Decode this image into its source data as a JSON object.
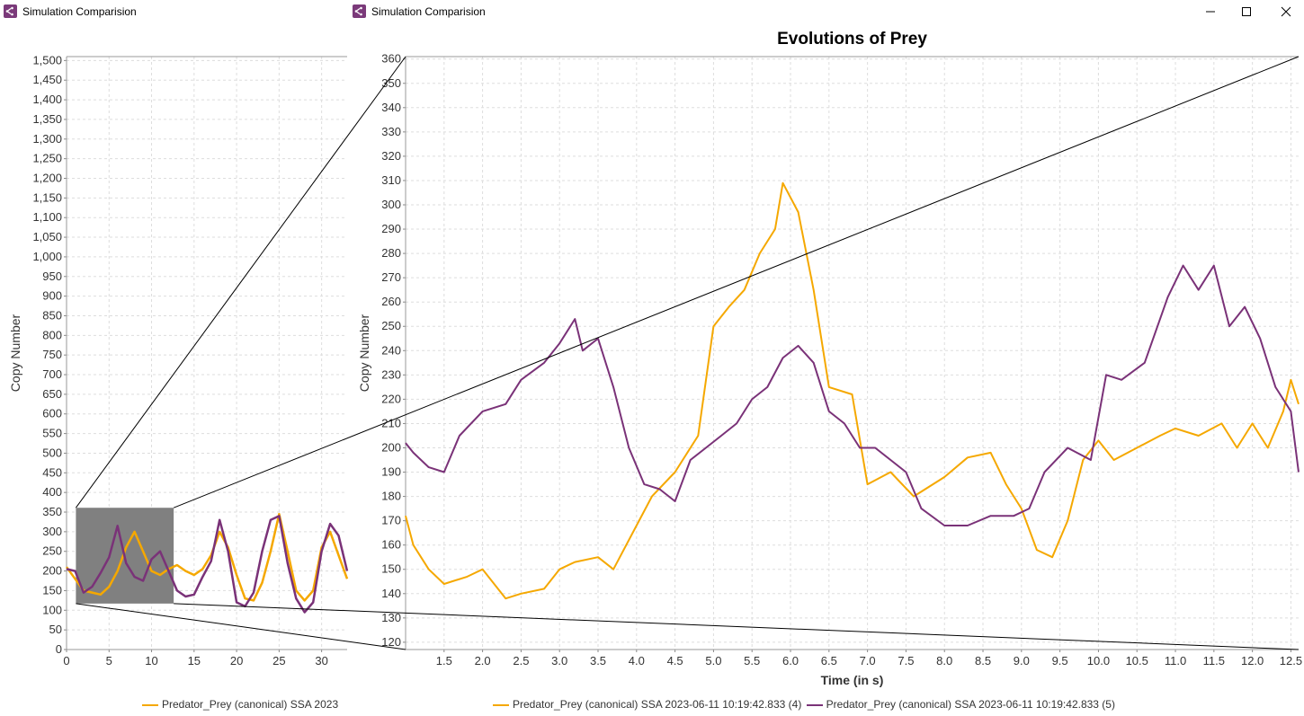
{
  "windows": {
    "left": {
      "title": "Simulation Comparision",
      "legend": [
        {
          "label": "Predator_Prey (canonical) SSA 2023",
          "color": "#f5a800"
        }
      ]
    },
    "right": {
      "title": "Simulation Comparision"
    }
  },
  "icons": {
    "app": "app-icon",
    "minimize": "minimize-icon",
    "maximize": "maximize-icon",
    "close": "close-icon"
  },
  "colors": {
    "series_a": "#f5a800",
    "series_b": "#7a3278",
    "selection": "#808080",
    "zoom_overlay": "#22cc22"
  },
  "chart_data": [
    {
      "type": "line",
      "title": "",
      "xlabel": "",
      "ylabel": "Copy Number",
      "xlim": [
        0,
        33
      ],
      "ylim": [
        0,
        1510
      ],
      "xticks": [
        "0",
        "5",
        "10",
        "15",
        "20",
        "25",
        "30"
      ],
      "yticks": [
        "0",
        "50",
        "100",
        "150",
        "200",
        "250",
        "300",
        "350",
        "400",
        "450",
        "500",
        "550",
        "600",
        "650",
        "700",
        "750",
        "800",
        "850",
        "900",
        "950",
        "1,000",
        "1,050",
        "1,100",
        "1,150",
        "1,200",
        "1,250",
        "1,300",
        "1,350",
        "1,400",
        "1,450",
        "1,500"
      ],
      "grid": true,
      "selection": {
        "x": [
          1.1,
          12.6
        ],
        "y": [
          117,
          361
        ]
      },
      "series": [
        {
          "name": "Predator_Prey (canonical) SSA 2023",
          "x": [
            0,
            1,
            2,
            3,
            4,
            5,
            6,
            7,
            8,
            9,
            10,
            11,
            12,
            13,
            14,
            15,
            16,
            17,
            18,
            19,
            20,
            21,
            22,
            23,
            24,
            25,
            26,
            27,
            28,
            29,
            30,
            31,
            32,
            33
          ],
          "values": [
            210,
            180,
            150,
            145,
            140,
            160,
            200,
            260,
            300,
            250,
            200,
            190,
            205,
            215,
            200,
            190,
            205,
            240,
            300,
            260,
            190,
            130,
            125,
            170,
            250,
            345,
            250,
            150,
            125,
            150,
            260,
            300,
            240,
            180
          ]
        },
        {
          "x": [
            0,
            1,
            2,
            3,
            4,
            5,
            6,
            7,
            8,
            9,
            10,
            11,
            12,
            13,
            14,
            15,
            16,
            17,
            18,
            19,
            20,
            21,
            22,
            23,
            24,
            25,
            26,
            27,
            28,
            29,
            30,
            31,
            32,
            33
          ],
          "values": [
            205,
            200,
            145,
            160,
            195,
            235,
            315,
            220,
            185,
            175,
            230,
            250,
            200,
            150,
            135,
            140,
            185,
            225,
            330,
            250,
            120,
            110,
            145,
            250,
            330,
            340,
            220,
            130,
            95,
            120,
            250,
            320,
            290,
            200
          ]
        }
      ]
    },
    {
      "type": "line",
      "title": "Evolutions of Prey",
      "xlabel": "Time (in s)",
      "ylabel": "Copy Number",
      "xlim": [
        1.0,
        12.6
      ],
      "ylim": [
        117,
        361
      ],
      "xticks": [
        "1.5",
        "2.0",
        "2.5",
        "3.0",
        "3.5",
        "4.0",
        "4.5",
        "5.0",
        "5.5",
        "6.0",
        "6.5",
        "7.0",
        "7.5",
        "8.0",
        "8.5",
        "9.0",
        "9.5",
        "10.0",
        "10.5",
        "11.0",
        "11.5",
        "12.0",
        "12.5"
      ],
      "yticks": [
        "120",
        "130",
        "140",
        "150",
        "160",
        "170",
        "180",
        "190",
        "200",
        "210",
        "220",
        "230",
        "240",
        "250",
        "260",
        "270",
        "280",
        "290",
        "300",
        "310",
        "320",
        "330",
        "340",
        "350",
        "360"
      ],
      "grid": true,
      "series": [
        {
          "name": "Predator_Prey (canonical) SSA 2023-06-11 10:19:42.833 (4)",
          "x": [
            1.0,
            1.1,
            1.3,
            1.5,
            1.8,
            2.0,
            2.3,
            2.5,
            2.8,
            3.0,
            3.2,
            3.5,
            3.7,
            4.0,
            4.2,
            4.5,
            4.8,
            5.0,
            5.2,
            5.4,
            5.6,
            5.8,
            5.9,
            6.1,
            6.3,
            6.5,
            6.8,
            7.0,
            7.3,
            7.6,
            8.0,
            8.3,
            8.6,
            8.8,
            9.0,
            9.2,
            9.4,
            9.6,
            9.8,
            10.0,
            10.2,
            10.5,
            10.8,
            11.0,
            11.3,
            11.6,
            11.8,
            12.0,
            12.2,
            12.4,
            12.5,
            12.6
          ],
          "values": [
            172,
            160,
            150,
            144,
            147,
            150,
            138,
            140,
            142,
            150,
            153,
            155,
            150,
            168,
            180,
            190,
            205,
            250,
            258,
            265,
            280,
            290,
            309,
            297,
            265,
            225,
            222,
            185,
            190,
            180,
            188,
            196,
            198,
            185,
            175,
            158,
            155,
            170,
            195,
            203,
            195,
            200,
            205,
            208,
            205,
            210,
            200,
            210,
            200,
            215,
            228,
            218
          ]
        },
        {
          "x": [
            1.0,
            1.1,
            1.3,
            1.5,
            1.7,
            2.0,
            2.3,
            2.5,
            2.8,
            3.0,
            3.2,
            3.3,
            3.5,
            3.7,
            3.9,
            4.1,
            4.3,
            4.5,
            4.7,
            4.9,
            5.1,
            5.3,
            5.5,
            5.7,
            5.9,
            6.1,
            6.3,
            6.5,
            6.7,
            6.9,
            7.1,
            7.3,
            7.5,
            7.7,
            8.0,
            8.3,
            8.6,
            8.9,
            9.1,
            9.3,
            9.6,
            9.9,
            10.1,
            10.3,
            10.6,
            10.9,
            11.1,
            11.3,
            11.5,
            11.7,
            11.9,
            12.1,
            12.3,
            12.5,
            12.6
          ],
          "values": [
            202,
            198,
            192,
            190,
            205,
            215,
            218,
            228,
            235,
            243,
            253,
            240,
            245,
            225,
            200,
            185,
            183,
            178,
            195,
            200,
            205,
            210,
            220,
            225,
            237,
            242,
            235,
            215,
            210,
            200,
            200,
            195,
            190,
            175,
            168,
            168,
            172,
            172,
            175,
            190,
            200,
            195,
            230,
            228,
            235,
            262,
            275,
            265,
            275,
            250,
            258,
            245,
            225,
            215,
            190
          ]
        }
      ]
    }
  ]
}
